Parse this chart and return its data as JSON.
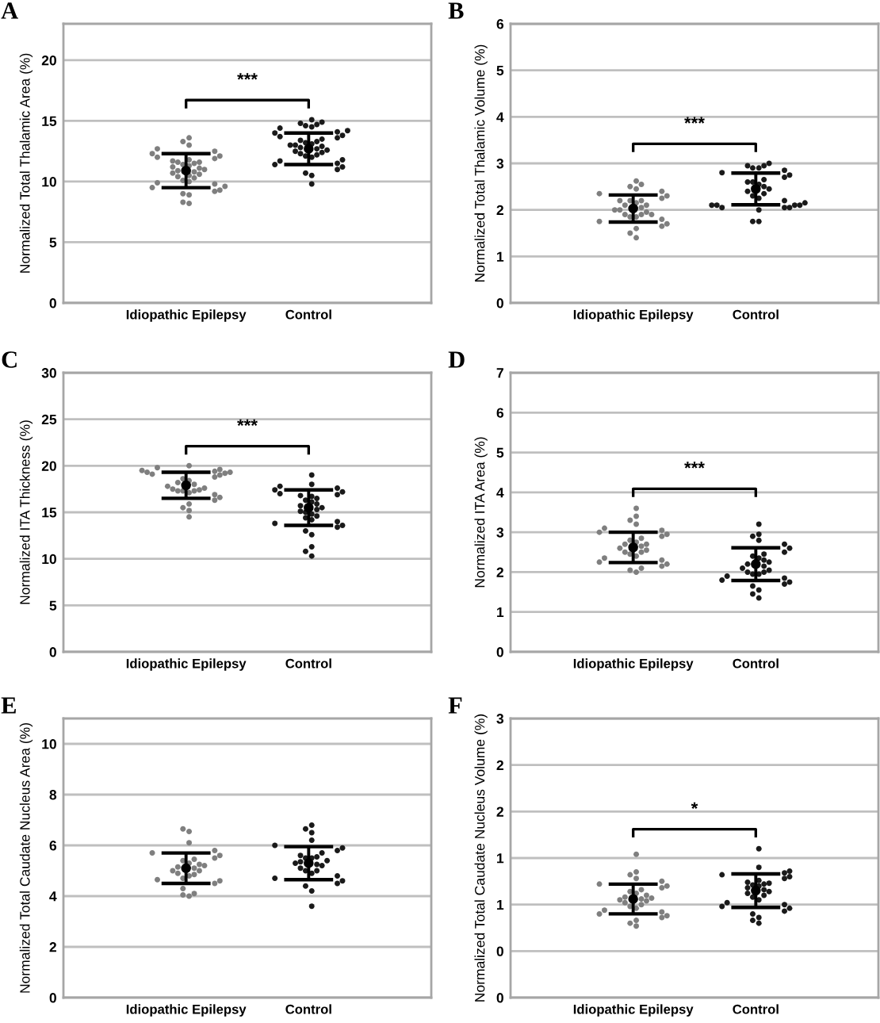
{
  "chart_data": [
    {
      "type": "scatter",
      "title": "A",
      "ylabel": "Normalized Total Thalamic Area (%)",
      "categories": [
        "Idiopathic Epilepsy",
        "Control"
      ],
      "ylim": [
        0,
        23
      ],
      "yticks": [
        0,
        5,
        10,
        15,
        20
      ],
      "grid": "y",
      "marker": "circle",
      "annotations": [
        "***"
      ],
      "series": [
        {
          "color": "#7f7f7f",
          "x": [
            "Idiopathic Epilepsy",
            "Idiopathic Epilepsy",
            "Idiopathic Epilepsy",
            "Idiopathic Epilepsy",
            "Idiopathic Epilepsy",
            "Idiopathic Epilepsy",
            "Idiopathic Epilepsy",
            "Idiopathic Epilepsy",
            "Idiopathic Epilepsy",
            "Idiopathic Epilepsy",
            "Idiopathic Epilepsy",
            "Idiopathic Epilepsy",
            "Idiopathic Epilepsy",
            "Idiopathic Epilepsy",
            "Idiopathic Epilepsy",
            "Idiopathic Epilepsy",
            "Idiopathic Epilepsy",
            "Idiopathic Epilepsy",
            "Idiopathic Epilepsy",
            "Idiopathic Epilepsy",
            "Idiopathic Epilepsy",
            "Idiopathic Epilepsy",
            "Idiopathic Epilepsy",
            "Idiopathic Epilepsy",
            "Idiopathic Epilepsy",
            "Idiopathic Epilepsy",
            "Idiopathic Epilepsy",
            "Idiopathic Epilepsy",
            "Idiopathic Epilepsy",
            "Idiopathic Epilepsy",
            "Idiopathic Epilepsy",
            "Idiopathic Epilepsy",
            "Idiopathic Epilepsy",
            "Idiopathic Epilepsy",
            "Idiopathic Epilepsy",
            "Idiopathic Epilepsy",
            "Idiopathic Epilepsy",
            "Idiopathic Epilepsy"
          ],
          "values": [
            8.2,
            8.3,
            8.9,
            9.0,
            9.2,
            9.3,
            9.5,
            9.6,
            9.8,
            9.9,
            10.0,
            10.1,
            10.3,
            10.4,
            10.5,
            10.6,
            10.7,
            10.8,
            10.9,
            11.0,
            11.1,
            11.2,
            11.3,
            11.4,
            11.5,
            11.6,
            11.6,
            11.7,
            11.8,
            11.9,
            12.0,
            12.1,
            12.3,
            12.5,
            12.7,
            13.0,
            13.3,
            13.6
          ]
        },
        {
          "color": "#1a1a1a",
          "x": [
            "Control",
            "Control",
            "Control",
            "Control",
            "Control",
            "Control",
            "Control",
            "Control",
            "Control",
            "Control",
            "Control",
            "Control",
            "Control",
            "Control",
            "Control",
            "Control",
            "Control",
            "Control",
            "Control",
            "Control",
            "Control",
            "Control",
            "Control",
            "Control",
            "Control",
            "Control",
            "Control",
            "Control",
            "Control",
            "Control",
            "Control",
            "Control",
            "Control",
            "Control",
            "Control",
            "Control",
            "Control",
            "Control",
            "Control"
          ],
          "values": [
            9.8,
            10.5,
            10.7,
            11.0,
            11.2,
            11.4,
            11.5,
            11.7,
            11.8,
            12.0,
            12.1,
            12.2,
            12.3,
            12.4,
            12.5,
            12.6,
            12.7,
            12.8,
            12.9,
            13.0,
            13.0,
            13.1,
            13.2,
            13.3,
            13.4,
            13.5,
            13.6,
            13.7,
            13.8,
            14.0,
            14.1,
            14.2,
            14.4,
            14.5,
            14.6,
            14.7,
            14.8,
            14.9,
            15.1
          ]
        },
        {
          "color": "#000000",
          "x": [
            "Idiopathic Epilepsy",
            "Control"
          ],
          "values": [
            10.9,
            12.7
          ],
          "errors": [
            1.4,
            1.3
          ]
        }
      ]
    },
    {
      "type": "scatter",
      "title": "B",
      "ylabel": "Normalized Total Thalamic Volume (%)",
      "categories": [
        "Idiopathic Epilepsy",
        "Control"
      ],
      "ylim": [
        0,
        6
      ],
      "yticks": [
        0,
        1,
        2,
        3,
        4,
        5,
        6
      ],
      "grid": "y",
      "marker": "circle",
      "annotations": [
        "***"
      ],
      "series": [
        {
          "color": "#7f7f7f",
          "x": [
            "Idiopathic Epilepsy",
            "Idiopathic Epilepsy",
            "Idiopathic Epilepsy",
            "Idiopathic Epilepsy",
            "Idiopathic Epilepsy",
            "Idiopathic Epilepsy",
            "Idiopathic Epilepsy",
            "Idiopathic Epilepsy",
            "Idiopathic Epilepsy",
            "Idiopathic Epilepsy",
            "Idiopathic Epilepsy",
            "Idiopathic Epilepsy",
            "Idiopathic Epilepsy",
            "Idiopathic Epilepsy",
            "Idiopathic Epilepsy",
            "Idiopathic Epilepsy",
            "Idiopathic Epilepsy",
            "Idiopathic Epilepsy",
            "Idiopathic Epilepsy",
            "Idiopathic Epilepsy",
            "Idiopathic Epilepsy",
            "Idiopathic Epilepsy",
            "Idiopathic Epilepsy",
            "Idiopathic Epilepsy",
            "Idiopathic Epilepsy",
            "Idiopathic Epilepsy",
            "Idiopathic Epilepsy",
            "Idiopathic Epilepsy",
            "Idiopathic Epilepsy",
            "Idiopathic Epilepsy"
          ],
          "values": [
            1.4,
            1.5,
            1.6,
            1.65,
            1.7,
            1.75,
            1.8,
            1.85,
            1.85,
            1.9,
            1.9,
            1.9,
            1.95,
            2.0,
            2.0,
            2.05,
            2.1,
            2.1,
            2.15,
            2.2,
            2.2,
            2.2,
            2.25,
            2.3,
            2.35,
            2.4,
            2.45,
            2.5,
            2.55,
            2.62
          ]
        },
        {
          "color": "#1a1a1a",
          "x": [
            "Control",
            "Control",
            "Control",
            "Control",
            "Control",
            "Control",
            "Control",
            "Control",
            "Control",
            "Control",
            "Control",
            "Control",
            "Control",
            "Control",
            "Control",
            "Control",
            "Control",
            "Control",
            "Control",
            "Control",
            "Control",
            "Control",
            "Control",
            "Control",
            "Control",
            "Control",
            "Control",
            "Control",
            "Control",
            "Control",
            "Control"
          ],
          "values": [
            1.75,
            1.75,
            2.0,
            2.05,
            2.05,
            2.05,
            2.1,
            2.1,
            2.1,
            2.1,
            2.15,
            2.2,
            2.25,
            2.3,
            2.35,
            2.4,
            2.45,
            2.5,
            2.55,
            2.6,
            2.6,
            2.65,
            2.7,
            2.75,
            2.8,
            2.85,
            2.9,
            2.9,
            2.95,
            2.95,
            3.0
          ]
        },
        {
          "color": "#000000",
          "x": [
            "Idiopathic Epilepsy",
            "Control"
          ],
          "values": [
            2.03,
            2.45
          ],
          "errors": [
            0.29,
            0.34
          ]
        }
      ]
    },
    {
      "type": "scatter",
      "title": "C",
      "ylabel": "Normalized ITA Thickness (%)",
      "categories": [
        "Idiopathic Epilepsy",
        "Control"
      ],
      "ylim": [
        0,
        30
      ],
      "yticks": [
        0,
        5,
        10,
        15,
        20,
        25,
        30
      ],
      "grid": "y",
      "marker": "circle",
      "annotations": [
        "***"
      ],
      "series": [
        {
          "color": "#7f7f7f",
          "x": [
            "Idiopathic Epilepsy",
            "Idiopathic Epilepsy",
            "Idiopathic Epilepsy",
            "Idiopathic Epilepsy",
            "Idiopathic Epilepsy",
            "Idiopathic Epilepsy",
            "Idiopathic Epilepsy",
            "Idiopathic Epilepsy",
            "Idiopathic Epilepsy",
            "Idiopathic Epilepsy",
            "Idiopathic Epilepsy",
            "Idiopathic Epilepsy",
            "Idiopathic Epilepsy",
            "Idiopathic Epilepsy",
            "Idiopathic Epilepsy",
            "Idiopathic Epilepsy",
            "Idiopathic Epilepsy",
            "Idiopathic Epilepsy",
            "Idiopathic Epilepsy",
            "Idiopathic Epilepsy",
            "Idiopathic Epilepsy",
            "Idiopathic Epilepsy",
            "Idiopathic Epilepsy",
            "Idiopathic Epilepsy",
            "Idiopathic Epilepsy",
            "Idiopathic Epilepsy",
            "Idiopathic Epilepsy",
            "Idiopathic Epilepsy",
            "Idiopathic Epilepsy",
            "Idiopathic Epilepsy"
          ],
          "values": [
            14.5,
            15.2,
            15.5,
            15.9,
            16.3,
            16.6,
            16.9,
            17.1,
            17.3,
            17.3,
            17.3,
            17.4,
            17.5,
            17.6,
            17.8,
            18.0,
            18.2,
            18.4,
            18.6,
            18.8,
            19.0,
            19.1,
            19.2,
            19.3,
            19.3,
            19.4,
            19.5,
            19.6,
            19.8,
            20.0
          ]
        },
        {
          "color": "#1a1a1a",
          "x": [
            "Control",
            "Control",
            "Control",
            "Control",
            "Control",
            "Control",
            "Control",
            "Control",
            "Control",
            "Control",
            "Control",
            "Control",
            "Control",
            "Control",
            "Control",
            "Control",
            "Control",
            "Control",
            "Control",
            "Control",
            "Control",
            "Control",
            "Control",
            "Control",
            "Control",
            "Control",
            "Control",
            "Control",
            "Control",
            "Control",
            "Control",
            "Control"
          ],
          "values": [
            10.3,
            10.8,
            11.3,
            12.6,
            13.0,
            13.4,
            13.6,
            13.8,
            14.0,
            14.2,
            14.4,
            14.6,
            14.8,
            15.0,
            15.1,
            15.3,
            15.5,
            15.7,
            15.9,
            16.1,
            16.3,
            16.5,
            16.7,
            16.8,
            16.9,
            17.0,
            17.2,
            17.4,
            17.6,
            17.8,
            18.0,
            19.0
          ]
        },
        {
          "color": "#000000",
          "x": [
            "Idiopathic Epilepsy",
            "Control"
          ],
          "values": [
            17.9,
            15.5
          ],
          "errors": [
            1.4,
            1.9
          ]
        }
      ]
    },
    {
      "type": "scatter",
      "title": "D",
      "ylabel": "Normalized ITA Area (%)",
      "categories": [
        "Idiopathic Epilepsy",
        "Control"
      ],
      "ylim": [
        0,
        7
      ],
      "yticks": [
        0,
        1,
        2,
        3,
        4,
        5,
        6,
        7
      ],
      "grid": "y",
      "marker": "circle",
      "annotations": [
        "***"
      ],
      "series": [
        {
          "color": "#7f7f7f",
          "x": [
            "Idiopathic Epilepsy",
            "Idiopathic Epilepsy",
            "Idiopathic Epilepsy",
            "Idiopathic Epilepsy",
            "Idiopathic Epilepsy",
            "Idiopathic Epilepsy",
            "Idiopathic Epilepsy",
            "Idiopathic Epilepsy",
            "Idiopathic Epilepsy",
            "Idiopathic Epilepsy",
            "Idiopathic Epilepsy",
            "Idiopathic Epilepsy",
            "Idiopathic Epilepsy",
            "Idiopathic Epilepsy",
            "Idiopathic Epilepsy",
            "Idiopathic Epilepsy",
            "Idiopathic Epilepsy",
            "Idiopathic Epilepsy",
            "Idiopathic Epilepsy",
            "Idiopathic Epilepsy",
            "Idiopathic Epilepsy",
            "Idiopathic Epilepsy",
            "Idiopathic Epilepsy",
            "Idiopathic Epilepsy",
            "Idiopathic Epilepsy",
            "Idiopathic Epilepsy",
            "Idiopathic Epilepsy",
            "Idiopathic Epilepsy",
            "Idiopathic Epilepsy"
          ],
          "values": [
            2.0,
            2.05,
            2.1,
            2.15,
            2.2,
            2.25,
            2.3,
            2.35,
            2.4,
            2.45,
            2.5,
            2.5,
            2.55,
            2.6,
            2.65,
            2.7,
            2.7,
            2.75,
            2.8,
            2.85,
            2.9,
            2.95,
            3.0,
            3.05,
            3.1,
            3.2,
            3.3,
            3.4,
            3.6
          ]
        },
        {
          "color": "#1a1a1a",
          "x": [
            "Control",
            "Control",
            "Control",
            "Control",
            "Control",
            "Control",
            "Control",
            "Control",
            "Control",
            "Control",
            "Control",
            "Control",
            "Control",
            "Control",
            "Control",
            "Control",
            "Control",
            "Control",
            "Control",
            "Control",
            "Control",
            "Control",
            "Control",
            "Control",
            "Control",
            "Control",
            "Control",
            "Control",
            "Control"
          ],
          "values": [
            1.35,
            1.45,
            1.55,
            1.65,
            1.7,
            1.75,
            1.8,
            1.85,
            1.9,
            1.95,
            1.95,
            2.0,
            2.0,
            2.05,
            2.1,
            2.15,
            2.2,
            2.25,
            2.3,
            2.35,
            2.4,
            2.45,
            2.5,
            2.6,
            2.7,
            2.8,
            2.9,
            2.95,
            3.2
          ]
        },
        {
          "color": "#000000",
          "x": [
            "Idiopathic Epilepsy",
            "Control"
          ],
          "values": [
            2.62,
            2.2
          ],
          "errors": [
            0.38,
            0.41
          ]
        }
      ]
    },
    {
      "type": "scatter",
      "title": "E",
      "ylabel": "Normalized Total Caudate Nucleus Area (%)",
      "categories": [
        "Idiopathic Epilepsy",
        "Control"
      ],
      "ylim": [
        0,
        11
      ],
      "yticks": [
        0,
        2,
        4,
        6,
        8,
        10
      ],
      "grid": "y",
      "marker": "circle",
      "series": [
        {
          "color": "#7f7f7f",
          "x": [
            "Idiopathic Epilepsy",
            "Idiopathic Epilepsy",
            "Idiopathic Epilepsy",
            "Idiopathic Epilepsy",
            "Idiopathic Epilepsy",
            "Idiopathic Epilepsy",
            "Idiopathic Epilepsy",
            "Idiopathic Epilepsy",
            "Idiopathic Epilepsy",
            "Idiopathic Epilepsy",
            "Idiopathic Epilepsy",
            "Idiopathic Epilepsy",
            "Idiopathic Epilepsy",
            "Idiopathic Epilepsy",
            "Idiopathic Epilepsy",
            "Idiopathic Epilepsy",
            "Idiopathic Epilepsy",
            "Idiopathic Epilepsy",
            "Idiopathic Epilepsy",
            "Idiopathic Epilepsy",
            "Idiopathic Epilepsy",
            "Idiopathic Epilepsy",
            "Idiopathic Epilepsy",
            "Idiopathic Epilepsy",
            "Idiopathic Epilepsy",
            "Idiopathic Epilepsy",
            "Idiopathic Epilepsy"
          ],
          "values": [
            4.0,
            4.05,
            4.1,
            4.3,
            4.5,
            4.6,
            4.65,
            4.7,
            4.8,
            4.85,
            4.9,
            5.0,
            5.0,
            5.1,
            5.15,
            5.2,
            5.25,
            5.3,
            5.4,
            5.45,
            5.5,
            5.6,
            5.7,
            5.8,
            6.1,
            6.55,
            6.65
          ]
        },
        {
          "color": "#1a1a1a",
          "x": [
            "Control",
            "Control",
            "Control",
            "Control",
            "Control",
            "Control",
            "Control",
            "Control",
            "Control",
            "Control",
            "Control",
            "Control",
            "Control",
            "Control",
            "Control",
            "Control",
            "Control",
            "Control",
            "Control",
            "Control",
            "Control",
            "Control",
            "Control",
            "Control",
            "Control",
            "Control",
            "Control",
            "Control"
          ],
          "values": [
            3.6,
            4.2,
            4.4,
            4.5,
            4.6,
            4.7,
            4.8,
            4.9,
            5.0,
            5.0,
            5.1,
            5.2,
            5.25,
            5.3,
            5.35,
            5.4,
            5.5,
            5.5,
            5.55,
            5.6,
            5.7,
            5.8,
            5.9,
            6.0,
            6.2,
            6.5,
            6.65,
            6.8
          ]
        },
        {
          "color": "#000000",
          "x": [
            "Idiopathic Epilepsy",
            "Control"
          ],
          "values": [
            5.1,
            5.3
          ],
          "errors": [
            0.6,
            0.65
          ]
        }
      ]
    },
    {
      "type": "scatter",
      "title": "F",
      "ylabel": "Normalized Total Caudate Nucleus Volume (%)",
      "categories": [
        "Idiopathic Epilepsy",
        "Control"
      ],
      "ylim": [
        0,
        3
      ],
      "yticks": [
        0,
        {
          "value": 0.5,
          "label": "0"
        },
        1,
        {
          "value": 1.5,
          "label": "1"
        },
        2,
        {
          "value": 2.5,
          "label": "2"
        },
        3
      ],
      "grid": "y",
      "marker": "circle",
      "annotations": [
        "*"
      ],
      "series": [
        {
          "color": "#7f7f7f",
          "x": [
            "Idiopathic Epilepsy",
            "Idiopathic Epilepsy",
            "Idiopathic Epilepsy",
            "Idiopathic Epilepsy",
            "Idiopathic Epilepsy",
            "Idiopathic Epilepsy",
            "Idiopathic Epilepsy",
            "Idiopathic Epilepsy",
            "Idiopathic Epilepsy",
            "Idiopathic Epilepsy",
            "Idiopathic Epilepsy",
            "Idiopathic Epilepsy",
            "Idiopathic Epilepsy",
            "Idiopathic Epilepsy",
            "Idiopathic Epilepsy",
            "Idiopathic Epilepsy",
            "Idiopathic Epilepsy",
            "Idiopathic Epilepsy",
            "Idiopathic Epilepsy",
            "Idiopathic Epilepsy",
            "Idiopathic Epilepsy",
            "Idiopathic Epilepsy",
            "Idiopathic Epilepsy",
            "Idiopathic Epilepsy",
            "Idiopathic Epilepsy",
            "Idiopathic Epilepsy",
            "Idiopathic Epilepsy",
            "Idiopathic Epilepsy",
            "Idiopathic Epilepsy"
          ],
          "values": [
            0.77,
            0.8,
            0.83,
            0.86,
            0.88,
            0.9,
            0.92,
            0.94,
            0.96,
            0.98,
            1.0,
            1.02,
            1.04,
            1.05,
            1.06,
            1.07,
            1.08,
            1.1,
            1.12,
            1.14,
            1.16,
            1.18,
            1.2,
            1.22,
            1.25,
            1.28,
            1.32,
            1.35,
            1.54
          ]
        },
        {
          "color": "#1a1a1a",
          "x": [
            "Control",
            "Control",
            "Control",
            "Control",
            "Control",
            "Control",
            "Control",
            "Control",
            "Control",
            "Control",
            "Control",
            "Control",
            "Control",
            "Control",
            "Control",
            "Control",
            "Control",
            "Control",
            "Control",
            "Control",
            "Control",
            "Control",
            "Control",
            "Control",
            "Control",
            "Control",
            "Control",
            "Control",
            "Control"
          ],
          "values": [
            0.8,
            0.83,
            0.86,
            0.9,
            0.93,
            0.96,
            0.98,
            1.0,
            1.02,
            1.05,
            1.08,
            1.1,
            1.12,
            1.14,
            1.16,
            1.18,
            1.2,
            1.21,
            1.22,
            1.23,
            1.24,
            1.26,
            1.28,
            1.3,
            1.32,
            1.34,
            1.36,
            1.4,
            1.6
          ]
        },
        {
          "color": "#000000",
          "x": [
            "Idiopathic Epilepsy",
            "Control"
          ],
          "values": [
            1.06,
            1.15
          ],
          "errors": [
            0.16,
            0.18
          ]
        }
      ]
    }
  ]
}
